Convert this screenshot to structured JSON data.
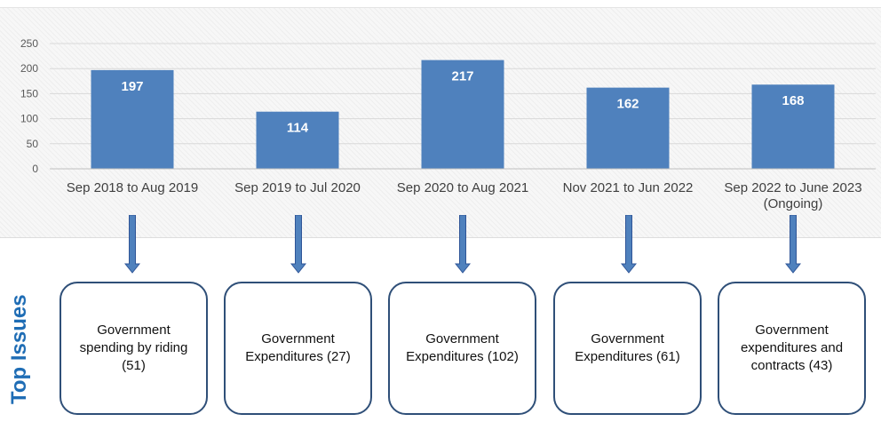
{
  "chart_data": {
    "type": "bar",
    "categories": [
      "Sep 2018 to Aug 2019",
      "Sep 2019 to Jul 2020",
      "Sep 2020 to Aug 2021",
      "Nov 2021 to Jun 2022",
      "Sep 2022 to June 2023 (Ongoing)"
    ],
    "values": [
      197,
      114,
      217,
      162,
      168
    ],
    "ylim": [
      0,
      250
    ],
    "yticks": [
      0,
      50,
      100,
      150,
      200,
      250
    ],
    "data_labels": true,
    "grid": true,
    "legend": "none",
    "bar_color": "#4f81bd"
  },
  "top_issues_label": "Top Issues",
  "issues": [
    {
      "text": "Government spending by riding (51)"
    },
    {
      "text": "Government Expenditures (27)"
    },
    {
      "text": "Government Expenditures (102)"
    },
    {
      "text": "Government Expenditures (61)"
    },
    {
      "text": "Government expenditures and contracts (43)"
    }
  ],
  "colors": {
    "arrow": "#4f81bd",
    "arrow_outline": "#2f5597",
    "box_border": "#2f4f78",
    "label": "#1f6db5"
  }
}
